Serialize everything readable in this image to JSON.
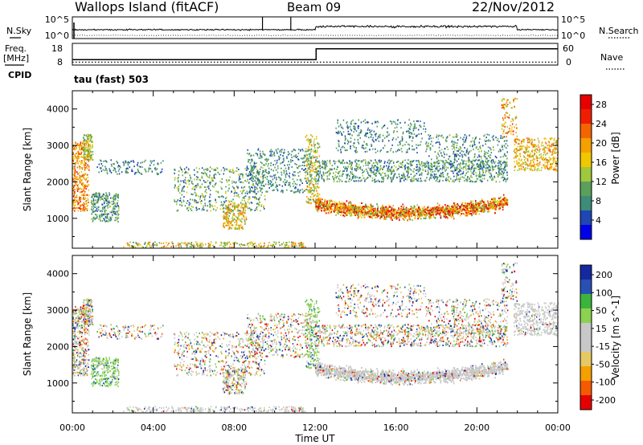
{
  "header": {
    "site": "Wallops Island (fitACF)",
    "beam": "Beam 09",
    "date": "22/Nov/2012"
  },
  "left_labels": {
    "nsky": "N.Sky",
    "freq": "Freq.",
    "freq_unit": "[MHz]",
    "cpid": "CPID",
    "cpid_value": "tau (fast) 503"
  },
  "right_labels": {
    "nsearch": "N.Search",
    "nave": "Nave"
  },
  "tick_labels": {
    "nsky_top": "10^5",
    "nsky_bottom": "10^0",
    "nsearch_top": "10^5",
    "nsearch_bottom": "10^0",
    "freq_top": "18",
    "freq_bottom": "8",
    "nave_top": "60",
    "nave_bottom": "0"
  },
  "colors": {
    "power": [
      "#0000e6",
      "#1e46b4",
      "#3c8c78",
      "#5aa05a",
      "#a0c83c",
      "#f0c800",
      "#f5a000",
      "#f56400",
      "#f01e00",
      "#e60000"
    ],
    "velocity": [
      "#e60000",
      "#f55a00",
      "#f5a000",
      "#e6c864",
      "#c8c8c8",
      "#c8c8c8",
      "#8cd250",
      "#3cb43c",
      "#2850b4",
      "#1428a0"
    ],
    "line": "#000000"
  },
  "chart_data": [
    {
      "type": "heatmap",
      "name_hint": "power-panel",
      "xlabel": "Time UT",
      "ylabel": "Slant Range [km]",
      "x_ticks": [
        "00:00",
        "04:00",
        "08:00",
        "12:00",
        "16:00",
        "20:00",
        "00:00"
      ],
      "y_ticks": [
        "1000",
        "2000",
        "3000",
        "4000"
      ],
      "xlim": [
        0,
        24
      ],
      "ylim": [
        180,
        4500
      ],
      "colorbar_label": "Power [dB]",
      "colorbar_ticks": [
        "4",
        "8",
        "12",
        "16",
        "20",
        "24",
        "28"
      ],
      "colorbar_range": [
        0,
        30
      ]
    },
    {
      "type": "heatmap",
      "name_hint": "velocity-panel",
      "xlabel": "Time UT",
      "ylabel": "Slant Range [km]",
      "x_ticks": [
        "00:00",
        "04:00",
        "08:00",
        "12:00",
        "16:00",
        "20:00",
        "00:00"
      ],
      "y_ticks": [
        "1000",
        "2000",
        "3000",
        "4000"
      ],
      "xlim": [
        0,
        24
      ],
      "ylim": [
        180,
        4500
      ],
      "colorbar_label": "Velocity [m s^-1]",
      "colorbar_ticks": [
        "200",
        "100",
        "50",
        "15",
        "-15",
        "-50",
        "-100",
        "-200"
      ],
      "colorbar_range": [
        -250,
        250
      ]
    }
  ],
  "top_panels": {
    "freq_steps": [
      {
        "t": 0,
        "freq": 10.5
      },
      {
        "t": 12.05,
        "freq": 15.5
      }
    ],
    "nave_level": 8,
    "nsky_spikes_at_hours": [
      9.4,
      10.8
    ]
  }
}
